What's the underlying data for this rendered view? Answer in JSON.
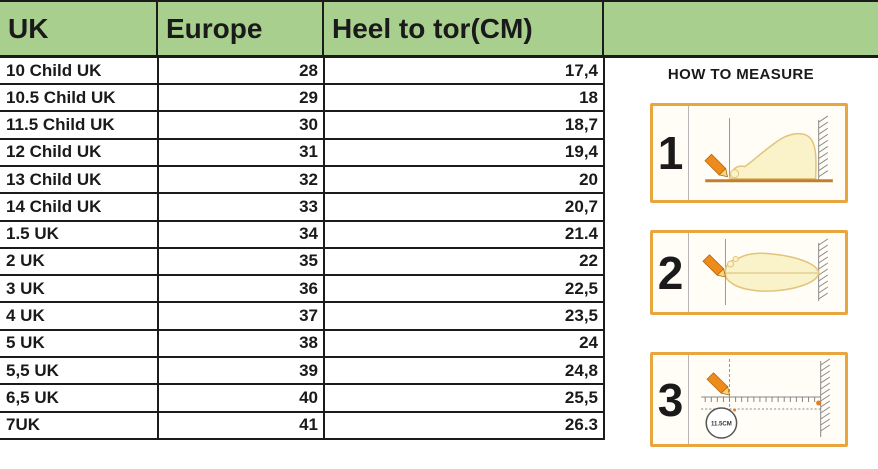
{
  "size_chart": {
    "headers": [
      "UK",
      "Europe",
      "Heel to tor(CM)"
    ],
    "rows": [
      [
        "10 Child UK",
        "28",
        "17,4"
      ],
      [
        "10.5 Child  UK",
        "29",
        "18"
      ],
      [
        "11.5 Child UK",
        "30",
        "18,7"
      ],
      [
        "12 Child UK",
        "31",
        "19,4"
      ],
      [
        "13 Child UK",
        "32",
        "20"
      ],
      [
        "14 Child UK",
        "33",
        "20,7"
      ],
      [
        "1.5 UK",
        "34",
        "21.4"
      ],
      [
        "2 UK",
        "35",
        "22"
      ],
      [
        "3 UK",
        "36",
        "22,5"
      ],
      [
        "4 UK",
        "37",
        "23,5"
      ],
      [
        "5 UK",
        "38",
        "24"
      ],
      [
        "5,5 UK",
        "39",
        "24,8"
      ],
      [
        "6,5 UK",
        "40",
        "25,5"
      ],
      [
        "7UK",
        "41",
        "26.3"
      ]
    ]
  },
  "measure_guide": {
    "title": "HOW TO MEASURE",
    "steps": [
      {
        "number": "1",
        "icon": "foot-side-view-pencil-mark"
      },
      {
        "number": "2",
        "icon": "foot-top-view-pencil-outline"
      },
      {
        "number": "3",
        "icon": "ruler-length-measurement",
        "note": "11.5CM"
      }
    ]
  },
  "colors": {
    "header_bg": "#A9CF8E",
    "grid_line": "#1b1b1b",
    "step_box_border": "#E9A63F",
    "pencil_orange": "#EF8B1D",
    "foot_fill": "#FAF2C8",
    "foot_outline": "#E2C47C",
    "floor_brown": "#C08030"
  }
}
